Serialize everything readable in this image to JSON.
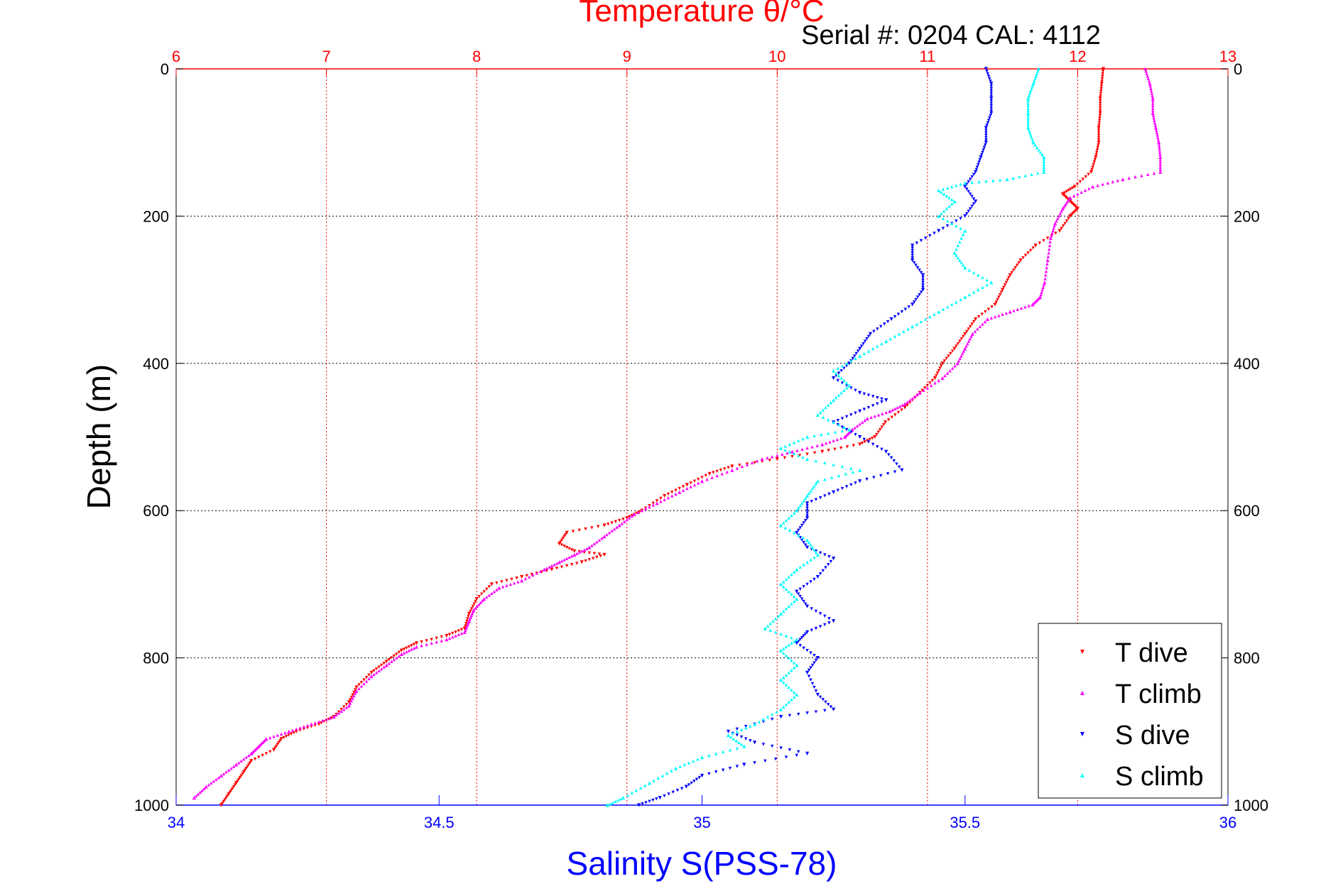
{
  "chart_data": {
    "type": "scatter",
    "title": "Temperature θ/°C",
    "subtitle": "Serial #: 0204  CAL: 4112",
    "ylabel": "Depth (m)",
    "xlabel": "Salinity S(PSS-78)",
    "ylim": [
      0,
      1000
    ],
    "y_reversed": true,
    "yticks": [
      "0",
      "200",
      "400",
      "600",
      "800",
      "1000"
    ],
    "temperature_axis": {
      "position": "top",
      "range": [
        6,
        13
      ],
      "ticks": [
        "6",
        "7",
        "8",
        "9",
        "10",
        "11",
        "12",
        "13"
      ],
      "color": "#ff0000"
    },
    "salinity_axis": {
      "position": "bottom",
      "range": [
        34,
        36
      ],
      "ticks": [
        "34",
        "34.5",
        "35",
        "35.5",
        "36"
      ],
      "color": "#0000ff"
    },
    "grid": true,
    "legend_position": "bottom-right",
    "series": [
      {
        "name": "T dive",
        "axis": "temperature",
        "color": "#ff0000",
        "marker": "triangle-down",
        "points": [
          [
            12.17,
            0
          ],
          [
            12.16,
            20
          ],
          [
            12.15,
            40
          ],
          [
            12.15,
            60
          ],
          [
            12.14,
            80
          ],
          [
            12.14,
            100
          ],
          [
            12.12,
            120
          ],
          [
            12.09,
            140
          ],
          [
            11.98,
            160
          ],
          [
            11.9,
            170
          ],
          [
            11.95,
            180
          ],
          [
            12.0,
            190
          ],
          [
            11.95,
            200
          ],
          [
            11.88,
            220
          ],
          [
            11.72,
            240
          ],
          [
            11.62,
            260
          ],
          [
            11.55,
            280
          ],
          [
            11.5,
            300
          ],
          [
            11.45,
            320
          ],
          [
            11.32,
            340
          ],
          [
            11.25,
            360
          ],
          [
            11.18,
            380
          ],
          [
            11.1,
            400
          ],
          [
            11.05,
            420
          ],
          [
            10.95,
            440
          ],
          [
            10.85,
            460
          ],
          [
            10.72,
            480
          ],
          [
            10.65,
            500
          ],
          [
            10.55,
            510
          ],
          [
            10.3,
            520
          ],
          [
            10.0,
            530
          ],
          [
            9.7,
            540
          ],
          [
            9.55,
            550
          ],
          [
            9.4,
            565
          ],
          [
            9.25,
            580
          ],
          [
            9.1,
            600
          ],
          [
            9.0,
            610
          ],
          [
            8.85,
            620
          ],
          [
            8.6,
            630
          ],
          [
            8.55,
            645
          ],
          [
            8.65,
            655
          ],
          [
            8.85,
            660
          ],
          [
            8.7,
            670
          ],
          [
            8.5,
            680
          ],
          [
            8.3,
            690
          ],
          [
            8.1,
            700
          ],
          [
            8.0,
            720
          ],
          [
            7.95,
            740
          ],
          [
            7.92,
            760
          ],
          [
            7.8,
            770
          ],
          [
            7.6,
            780
          ],
          [
            7.5,
            790
          ],
          [
            7.4,
            805
          ],
          [
            7.3,
            820
          ],
          [
            7.2,
            840
          ],
          [
            7.15,
            860
          ],
          [
            7.05,
            880
          ],
          [
            6.95,
            890
          ],
          [
            6.8,
            900
          ],
          [
            6.7,
            910
          ],
          [
            6.65,
            925
          ],
          [
            6.5,
            940
          ],
          [
            6.45,
            955
          ],
          [
            6.4,
            970
          ],
          [
            6.35,
            985
          ],
          [
            6.3,
            1000
          ]
        ]
      },
      {
        "name": "T climb",
        "axis": "temperature",
        "color": "#ff00ff",
        "marker": "triangle-up",
        "points": [
          [
            12.45,
            0
          ],
          [
            12.48,
            20
          ],
          [
            12.5,
            40
          ],
          [
            12.5,
            60
          ],
          [
            12.52,
            80
          ],
          [
            12.54,
            100
          ],
          [
            12.55,
            120
          ],
          [
            12.55,
            140
          ],
          [
            12.3,
            150
          ],
          [
            12.1,
            160
          ],
          [
            11.95,
            175
          ],
          [
            11.9,
            190
          ],
          [
            11.85,
            210
          ],
          [
            11.82,
            230
          ],
          [
            11.8,
            260
          ],
          [
            11.78,
            290
          ],
          [
            11.75,
            310
          ],
          [
            11.7,
            320
          ],
          [
            11.55,
            330
          ],
          [
            11.4,
            340
          ],
          [
            11.3,
            360
          ],
          [
            11.25,
            380
          ],
          [
            11.2,
            400
          ],
          [
            11.1,
            420
          ],
          [
            10.95,
            440
          ],
          [
            10.85,
            455
          ],
          [
            10.75,
            465
          ],
          [
            10.6,
            475
          ],
          [
            10.5,
            490
          ],
          [
            10.45,
            500
          ],
          [
            10.3,
            510
          ],
          [
            10.1,
            520
          ],
          [
            9.9,
            530
          ],
          [
            9.7,
            545
          ],
          [
            9.5,
            560
          ],
          [
            9.35,
            575
          ],
          [
            9.2,
            590
          ],
          [
            9.05,
            605
          ],
          [
            8.95,
            620
          ],
          [
            8.85,
            635
          ],
          [
            8.75,
            650
          ],
          [
            8.65,
            660
          ],
          [
            8.55,
            670
          ],
          [
            8.45,
            680
          ],
          [
            8.3,
            695
          ],
          [
            8.15,
            705
          ],
          [
            8.05,
            720
          ],
          [
            7.98,
            735
          ],
          [
            7.95,
            750
          ],
          [
            7.92,
            765
          ],
          [
            7.8,
            775
          ],
          [
            7.6,
            785
          ],
          [
            7.5,
            795
          ],
          [
            7.4,
            810
          ],
          [
            7.3,
            825
          ],
          [
            7.2,
            845
          ],
          [
            7.15,
            865
          ],
          [
            7.05,
            880
          ],
          [
            6.9,
            890
          ],
          [
            6.75,
            900
          ],
          [
            6.6,
            910
          ],
          [
            6.55,
            920
          ],
          [
            6.5,
            930
          ],
          [
            6.4,
            945
          ],
          [
            6.3,
            960
          ],
          [
            6.2,
            975
          ],
          [
            6.12,
            990
          ]
        ]
      },
      {
        "name": "S dive",
        "axis": "salinity",
        "color": "#0000ff",
        "marker": "triangle-down",
        "points": [
          [
            35.54,
            0
          ],
          [
            35.55,
            20
          ],
          [
            35.55,
            40
          ],
          [
            35.55,
            60
          ],
          [
            35.54,
            80
          ],
          [
            35.54,
            100
          ],
          [
            35.53,
            120
          ],
          [
            35.52,
            140
          ],
          [
            35.5,
            160
          ],
          [
            35.52,
            180
          ],
          [
            35.5,
            200
          ],
          [
            35.45,
            220
          ],
          [
            35.4,
            240
          ],
          [
            35.4,
            260
          ],
          [
            35.42,
            280
          ],
          [
            35.42,
            300
          ],
          [
            35.4,
            320
          ],
          [
            35.36,
            340
          ],
          [
            35.32,
            360
          ],
          [
            35.3,
            380
          ],
          [
            35.28,
            400
          ],
          [
            35.25,
            420
          ],
          [
            35.3,
            440
          ],
          [
            35.35,
            450
          ],
          [
            35.3,
            465
          ],
          [
            35.25,
            480
          ],
          [
            35.3,
            500
          ],
          [
            35.35,
            520
          ],
          [
            35.38,
            545
          ],
          [
            35.3,
            560
          ],
          [
            35.25,
            575
          ],
          [
            35.2,
            590
          ],
          [
            35.2,
            610
          ],
          [
            35.18,
            630
          ],
          [
            35.2,
            650
          ],
          [
            35.25,
            665
          ],
          [
            35.22,
            690
          ],
          [
            35.18,
            710
          ],
          [
            35.2,
            730
          ],
          [
            35.25,
            750
          ],
          [
            35.2,
            765
          ],
          [
            35.18,
            780
          ],
          [
            35.22,
            800
          ],
          [
            35.2,
            820
          ],
          [
            35.22,
            850
          ],
          [
            35.25,
            870
          ],
          [
            35.15,
            880
          ],
          [
            35.05,
            900
          ],
          [
            35.1,
            915
          ],
          [
            35.2,
            930
          ],
          [
            35.08,
            945
          ],
          [
            35.0,
            960
          ],
          [
            34.97,
            975
          ],
          [
            34.92,
            990
          ],
          [
            34.88,
            1000
          ]
        ]
      },
      {
        "name": "S climb",
        "axis": "salinity",
        "color": "#00ffff",
        "marker": "triangle-up",
        "points": [
          [
            35.64,
            0
          ],
          [
            35.63,
            20
          ],
          [
            35.62,
            40
          ],
          [
            35.62,
            60
          ],
          [
            35.62,
            80
          ],
          [
            35.63,
            100
          ],
          [
            35.65,
            120
          ],
          [
            35.65,
            140
          ],
          [
            35.58,
            150
          ],
          [
            35.5,
            155
          ],
          [
            35.45,
            165
          ],
          [
            35.48,
            180
          ],
          [
            35.45,
            200
          ],
          [
            35.5,
            220
          ],
          [
            35.48,
            250
          ],
          [
            35.5,
            270
          ],
          [
            35.55,
            290
          ],
          [
            35.5,
            310
          ],
          [
            35.45,
            330
          ],
          [
            35.4,
            350
          ],
          [
            35.35,
            370
          ],
          [
            35.3,
            390
          ],
          [
            35.25,
            410
          ],
          [
            35.28,
            430
          ],
          [
            35.25,
            450
          ],
          [
            35.22,
            470
          ],
          [
            35.28,
            490
          ],
          [
            35.2,
            500
          ],
          [
            35.15,
            515
          ],
          [
            35.2,
            530
          ],
          [
            35.3,
            545
          ],
          [
            35.22,
            560
          ],
          [
            35.2,
            580
          ],
          [
            35.18,
            600
          ],
          [
            35.15,
            620
          ],
          [
            35.2,
            640
          ],
          [
            35.22,
            660
          ],
          [
            35.18,
            680
          ],
          [
            35.15,
            700
          ],
          [
            35.18,
            720
          ],
          [
            35.15,
            740
          ],
          [
            35.12,
            760
          ],
          [
            35.18,
            775
          ],
          [
            35.15,
            790
          ],
          [
            35.18,
            810
          ],
          [
            35.15,
            830
          ],
          [
            35.18,
            850
          ],
          [
            35.15,
            870
          ],
          [
            35.1,
            890
          ],
          [
            35.05,
            905
          ],
          [
            35.08,
            920
          ],
          [
            35.0,
            935
          ],
          [
            34.95,
            950
          ],
          [
            34.9,
            970
          ],
          [
            34.85,
            990
          ],
          [
            34.82,
            1000
          ]
        ]
      }
    ]
  }
}
